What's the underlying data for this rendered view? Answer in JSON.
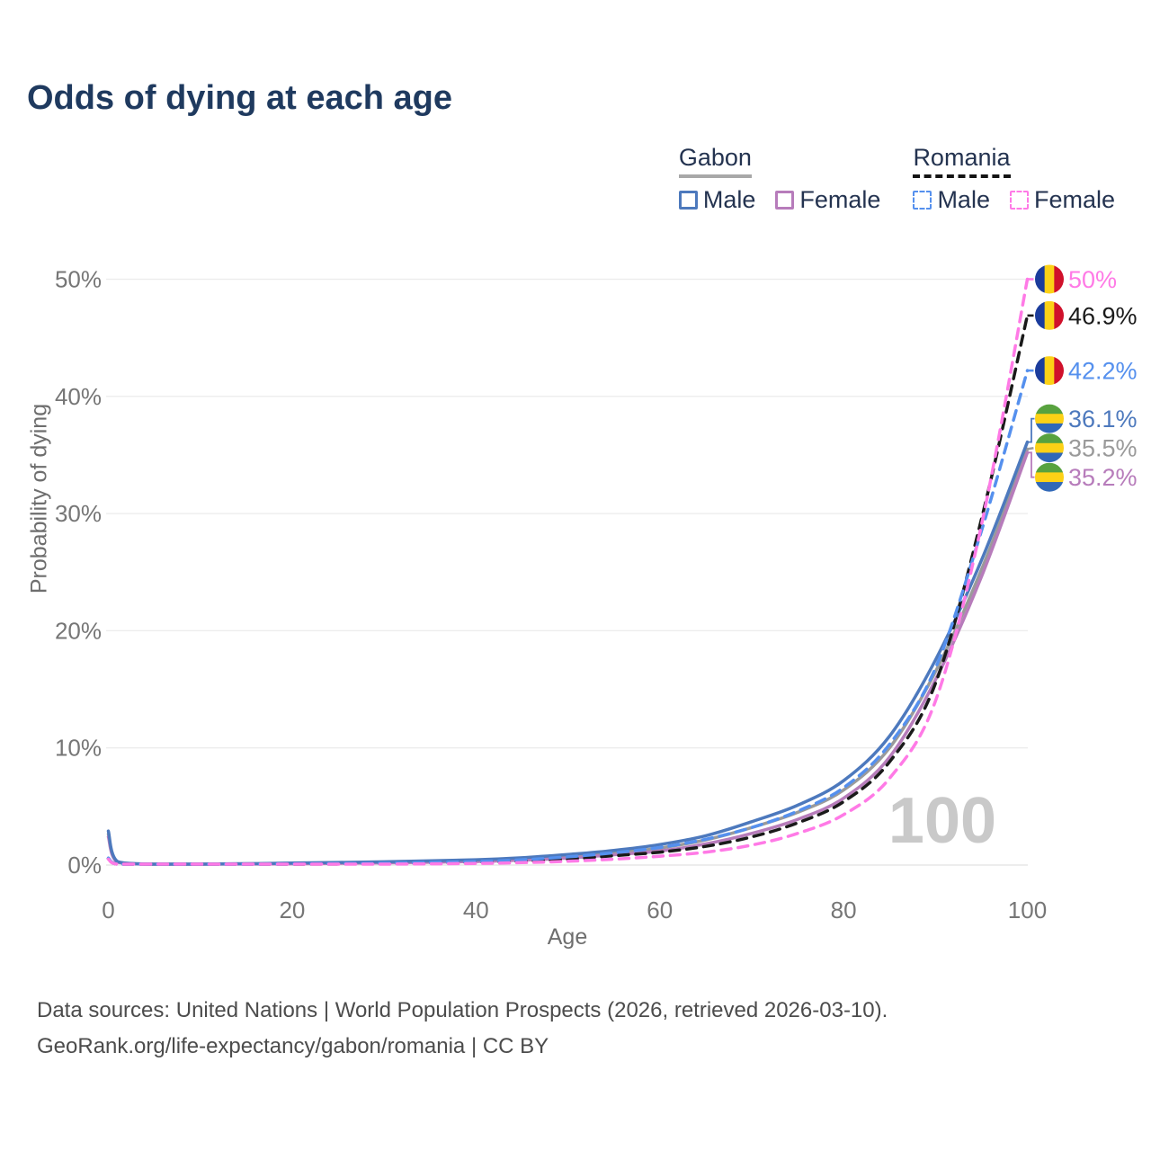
{
  "title": "Odds of dying at each age",
  "legend": {
    "groups": [
      {
        "name": "Gabon",
        "line_style": "solid",
        "line_color": "#a8a8a8",
        "items": [
          {
            "label": "Male",
            "color": "#4d79bd",
            "dashed": false
          },
          {
            "label": "Female",
            "color": "#b77cbb",
            "dashed": false
          }
        ]
      },
      {
        "name": "Romania",
        "line_style": "dashed",
        "line_color": "#141414",
        "items": [
          {
            "label": "Male",
            "color": "#5590ee",
            "dashed": true
          },
          {
            "label": "Female",
            "color": "#ff7ae6",
            "dashed": true
          }
        ]
      }
    ]
  },
  "watermark": "100",
  "footer": {
    "line1": "Data sources: United Nations | World Population Prospects (2026, retrieved 2026-03-10).",
    "line2": "GeoRank.org/life-expectancy/gabon/romania | CC BY"
  },
  "flags": {
    "romania": [
      "#1b3c9c",
      "#fcd116",
      "#d0112b"
    ],
    "gabon": [
      "#58a23f",
      "#fcd116",
      "#3068b8"
    ]
  },
  "chart_data": {
    "type": "line",
    "title": "Odds of dying at each age",
    "xlabel": "Age",
    "ylabel": "Probability of dying",
    "xlim": [
      0,
      100
    ],
    "ylim": [
      0,
      50
    ],
    "x_ticks": [
      0,
      20,
      40,
      60,
      80,
      100
    ],
    "y_ticks": [
      {
        "v": 0,
        "label": "0%"
      },
      {
        "v": 10,
        "label": "10%"
      },
      {
        "v": 20,
        "label": "20%"
      },
      {
        "v": 30,
        "label": "30%"
      },
      {
        "v": 40,
        "label": "40%"
      },
      {
        "v": 50,
        "label": "50%"
      }
    ],
    "grid": "horizontal",
    "legend_position": "top-right",
    "ages": [
      0,
      1,
      5,
      10,
      20,
      30,
      40,
      45,
      50,
      55,
      60,
      65,
      70,
      75,
      80,
      85,
      90,
      95,
      100
    ],
    "series": [
      {
        "name": "Romania Female",
        "country": "Romania",
        "sex": "Female",
        "color": "#ff7ae6",
        "dashed": true,
        "flag": "romania",
        "end_label": "50%",
        "end_value": 50.0,
        "label_at": 50.0,
        "values": [
          0.5,
          0.04,
          0.02,
          0.02,
          0.05,
          0.08,
          0.14,
          0.21,
          0.32,
          0.5,
          0.75,
          1.1,
          1.7,
          2.7,
          4.3,
          7.4,
          14.0,
          29.0,
          50.0
        ]
      },
      {
        "name": "Romania Both sexes",
        "country": "Romania",
        "sex": "Both",
        "color": "#1a1a1a",
        "dashed": true,
        "flag": "romania",
        "end_label": "46.9%",
        "end_value": 46.9,
        "label_at": 46.9,
        "values": [
          0.55,
          0.05,
          0.02,
          0.02,
          0.07,
          0.12,
          0.22,
          0.33,
          0.5,
          0.8,
          1.1,
          1.6,
          2.4,
          3.6,
          5.4,
          8.8,
          15.5,
          29.5,
          46.9
        ]
      },
      {
        "name": "Romania Male",
        "country": "Romania",
        "sex": "Male",
        "color": "#5590ee",
        "dashed": true,
        "flag": "romania",
        "end_label": "42.2%",
        "end_value": 42.2,
        "label_at": 42.2,
        "values": [
          0.6,
          0.05,
          0.02,
          0.02,
          0.09,
          0.16,
          0.3,
          0.45,
          0.7,
          1.05,
          1.5,
          2.2,
          3.2,
          4.6,
          6.6,
          10.3,
          16.8,
          28.5,
          42.2
        ]
      },
      {
        "name": "Gabon Male",
        "country": "Gabon",
        "sex": "Male",
        "color": "#4d79bd",
        "dashed": false,
        "flag": "gabon",
        "end_label": "36.1%",
        "end_value": 36.1,
        "label_at": 38.1,
        "values": [
          2.9,
          0.3,
          0.08,
          0.06,
          0.17,
          0.28,
          0.45,
          0.62,
          0.9,
          1.25,
          1.75,
          2.5,
          3.7,
          5.1,
          7.2,
          11.0,
          17.5,
          26.0,
          36.1
        ]
      },
      {
        "name": "Gabon Both sexes",
        "country": "Gabon",
        "sex": "Both",
        "color": "#9a9a9a",
        "dashed": false,
        "flag": "gabon",
        "end_label": "35.5%",
        "end_value": 35.5,
        "label_at": 35.6,
        "values": [
          2.65,
          0.27,
          0.07,
          0.05,
          0.14,
          0.23,
          0.38,
          0.52,
          0.75,
          1.05,
          1.45,
          2.15,
          3.2,
          4.5,
          6.4,
          10.0,
          16.5,
          25.2,
          35.5
        ]
      },
      {
        "name": "Gabon Female",
        "country": "Gabon",
        "sex": "Female",
        "color": "#b77cbb",
        "dashed": false,
        "flag": "gabon",
        "end_label": "35.2%",
        "end_value": 35.2,
        "label_at": 33.1,
        "values": [
          2.4,
          0.24,
          0.06,
          0.05,
          0.11,
          0.19,
          0.3,
          0.42,
          0.6,
          0.88,
          1.2,
          1.8,
          2.7,
          3.9,
          5.7,
          9.2,
          15.8,
          24.6,
          35.2
        ]
      }
    ]
  }
}
